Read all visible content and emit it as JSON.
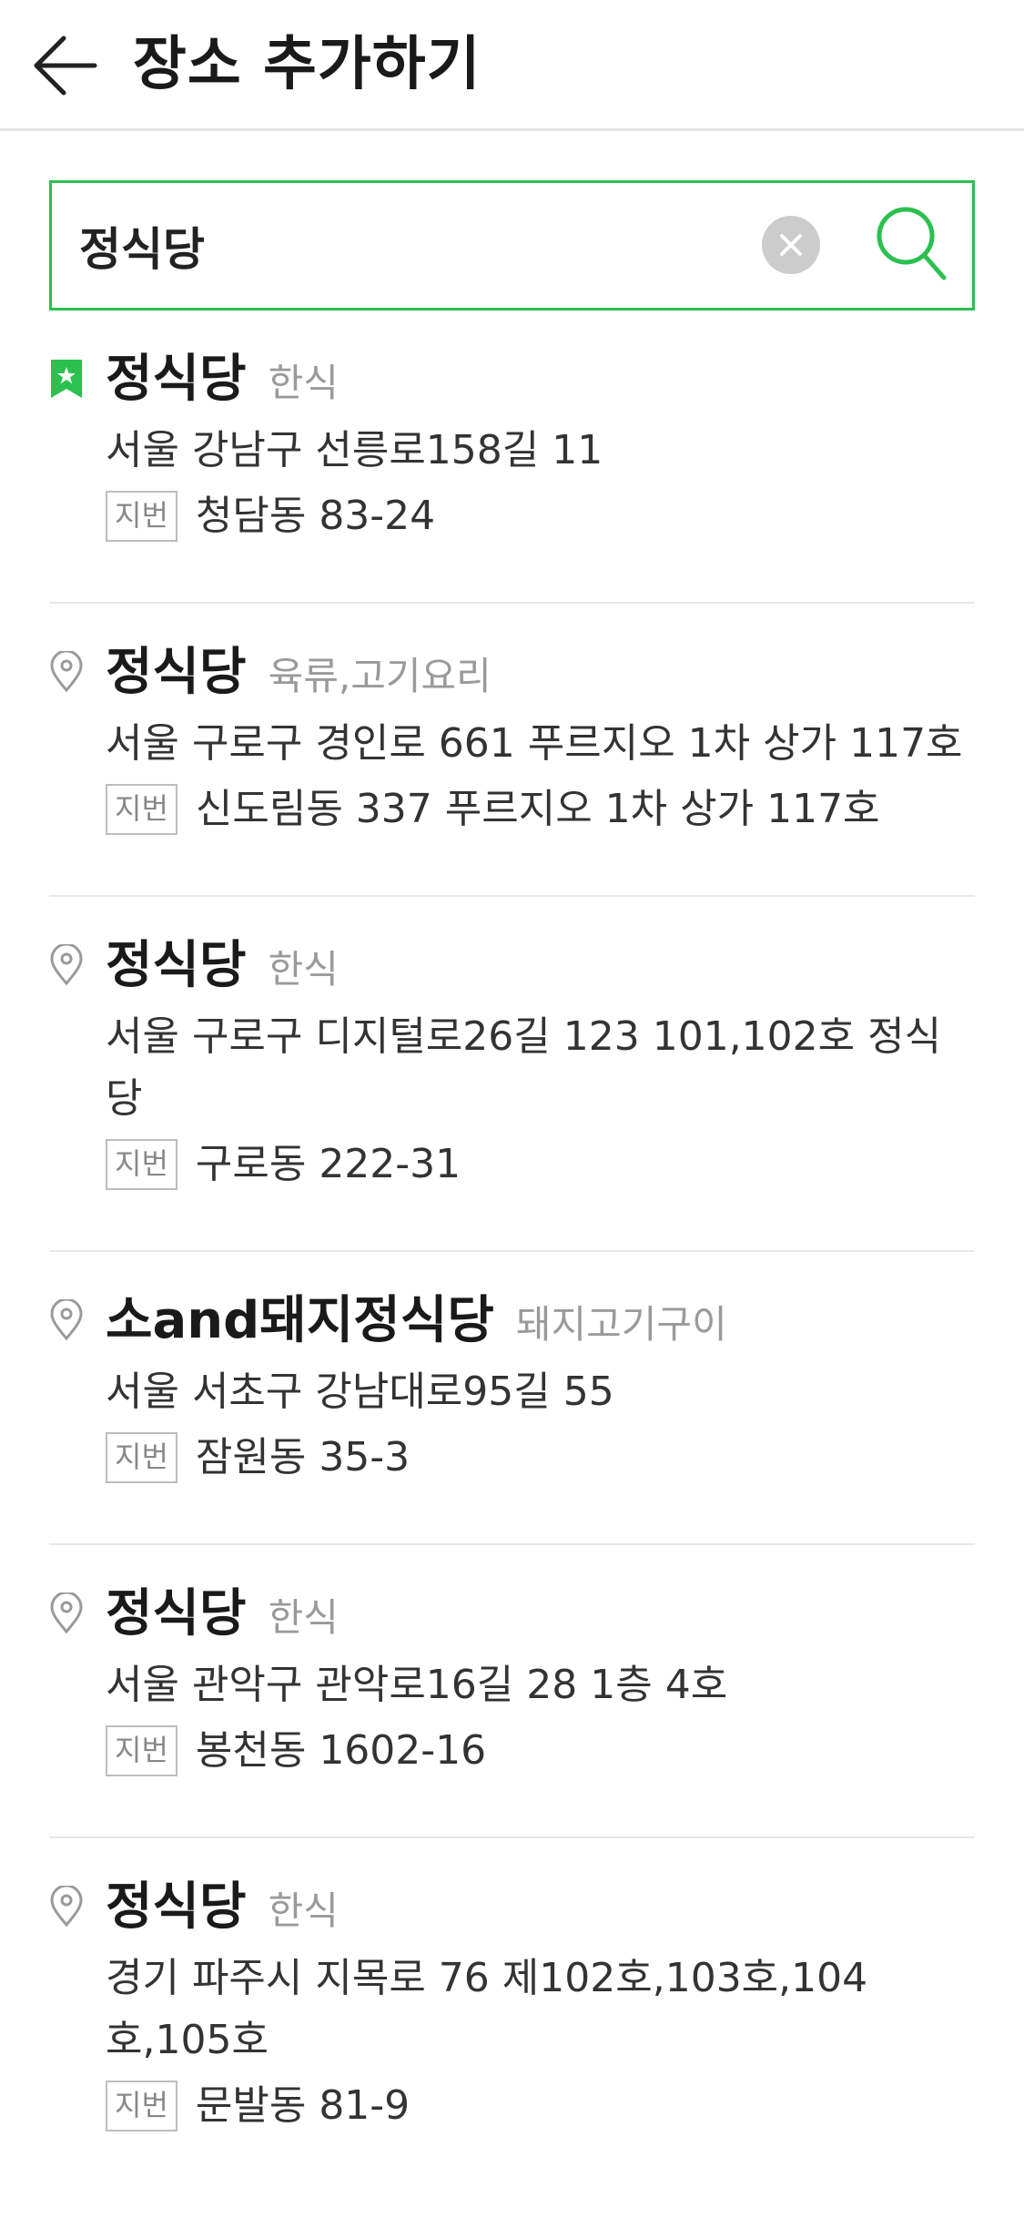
{
  "header": {
    "title": "장소 추가하기",
    "back_icon": "arrow-left-icon"
  },
  "search": {
    "value": "정식당",
    "clear_icon": "clear-x-icon",
    "search_icon": "magnifier-icon",
    "accent_color": "#2bc04f"
  },
  "results": [
    {
      "name": "정식당",
      "category": "한식",
      "address": "서울 강남구 선릉로158길 11",
      "jibun_label": "지번",
      "jibun": "청담동 83-24",
      "icon": "bookmark-star-icon"
    },
    {
      "name": "정식당",
      "category": "육류,고기요리",
      "address": "서울 구로구 경인로 661 푸르지오 1차 상가 117호",
      "jibun_label": "지번",
      "jibun": "신도림동 337 푸르지오 1차 상가 117호",
      "icon": "location-pin-icon"
    },
    {
      "name": "정식당",
      "category": "한식",
      "address": "서울 구로구 디지털로26길 123 101,102호 정식당",
      "jibun_label": "지번",
      "jibun": "구로동 222-31",
      "icon": "location-pin-icon"
    },
    {
      "name": "소and돼지정식당",
      "category": "돼지고기구이",
      "address": "서울 서초구 강남대로95길 55",
      "jibun_label": "지번",
      "jibun": "잠원동 35-3",
      "icon": "location-pin-icon"
    },
    {
      "name": "정식당",
      "category": "한식",
      "address": "서울 관악구 관악로16길 28 1층 4호",
      "jibun_label": "지번",
      "jibun": "봉천동 1602-16",
      "icon": "location-pin-icon"
    },
    {
      "name": "정식당",
      "category": "한식",
      "address": "경기 파주시 지목로 76 제102호,103호,104호,105호",
      "jibun_label": "지번",
      "jibun": "문발동 81-9",
      "icon": "location-pin-icon"
    }
  ]
}
